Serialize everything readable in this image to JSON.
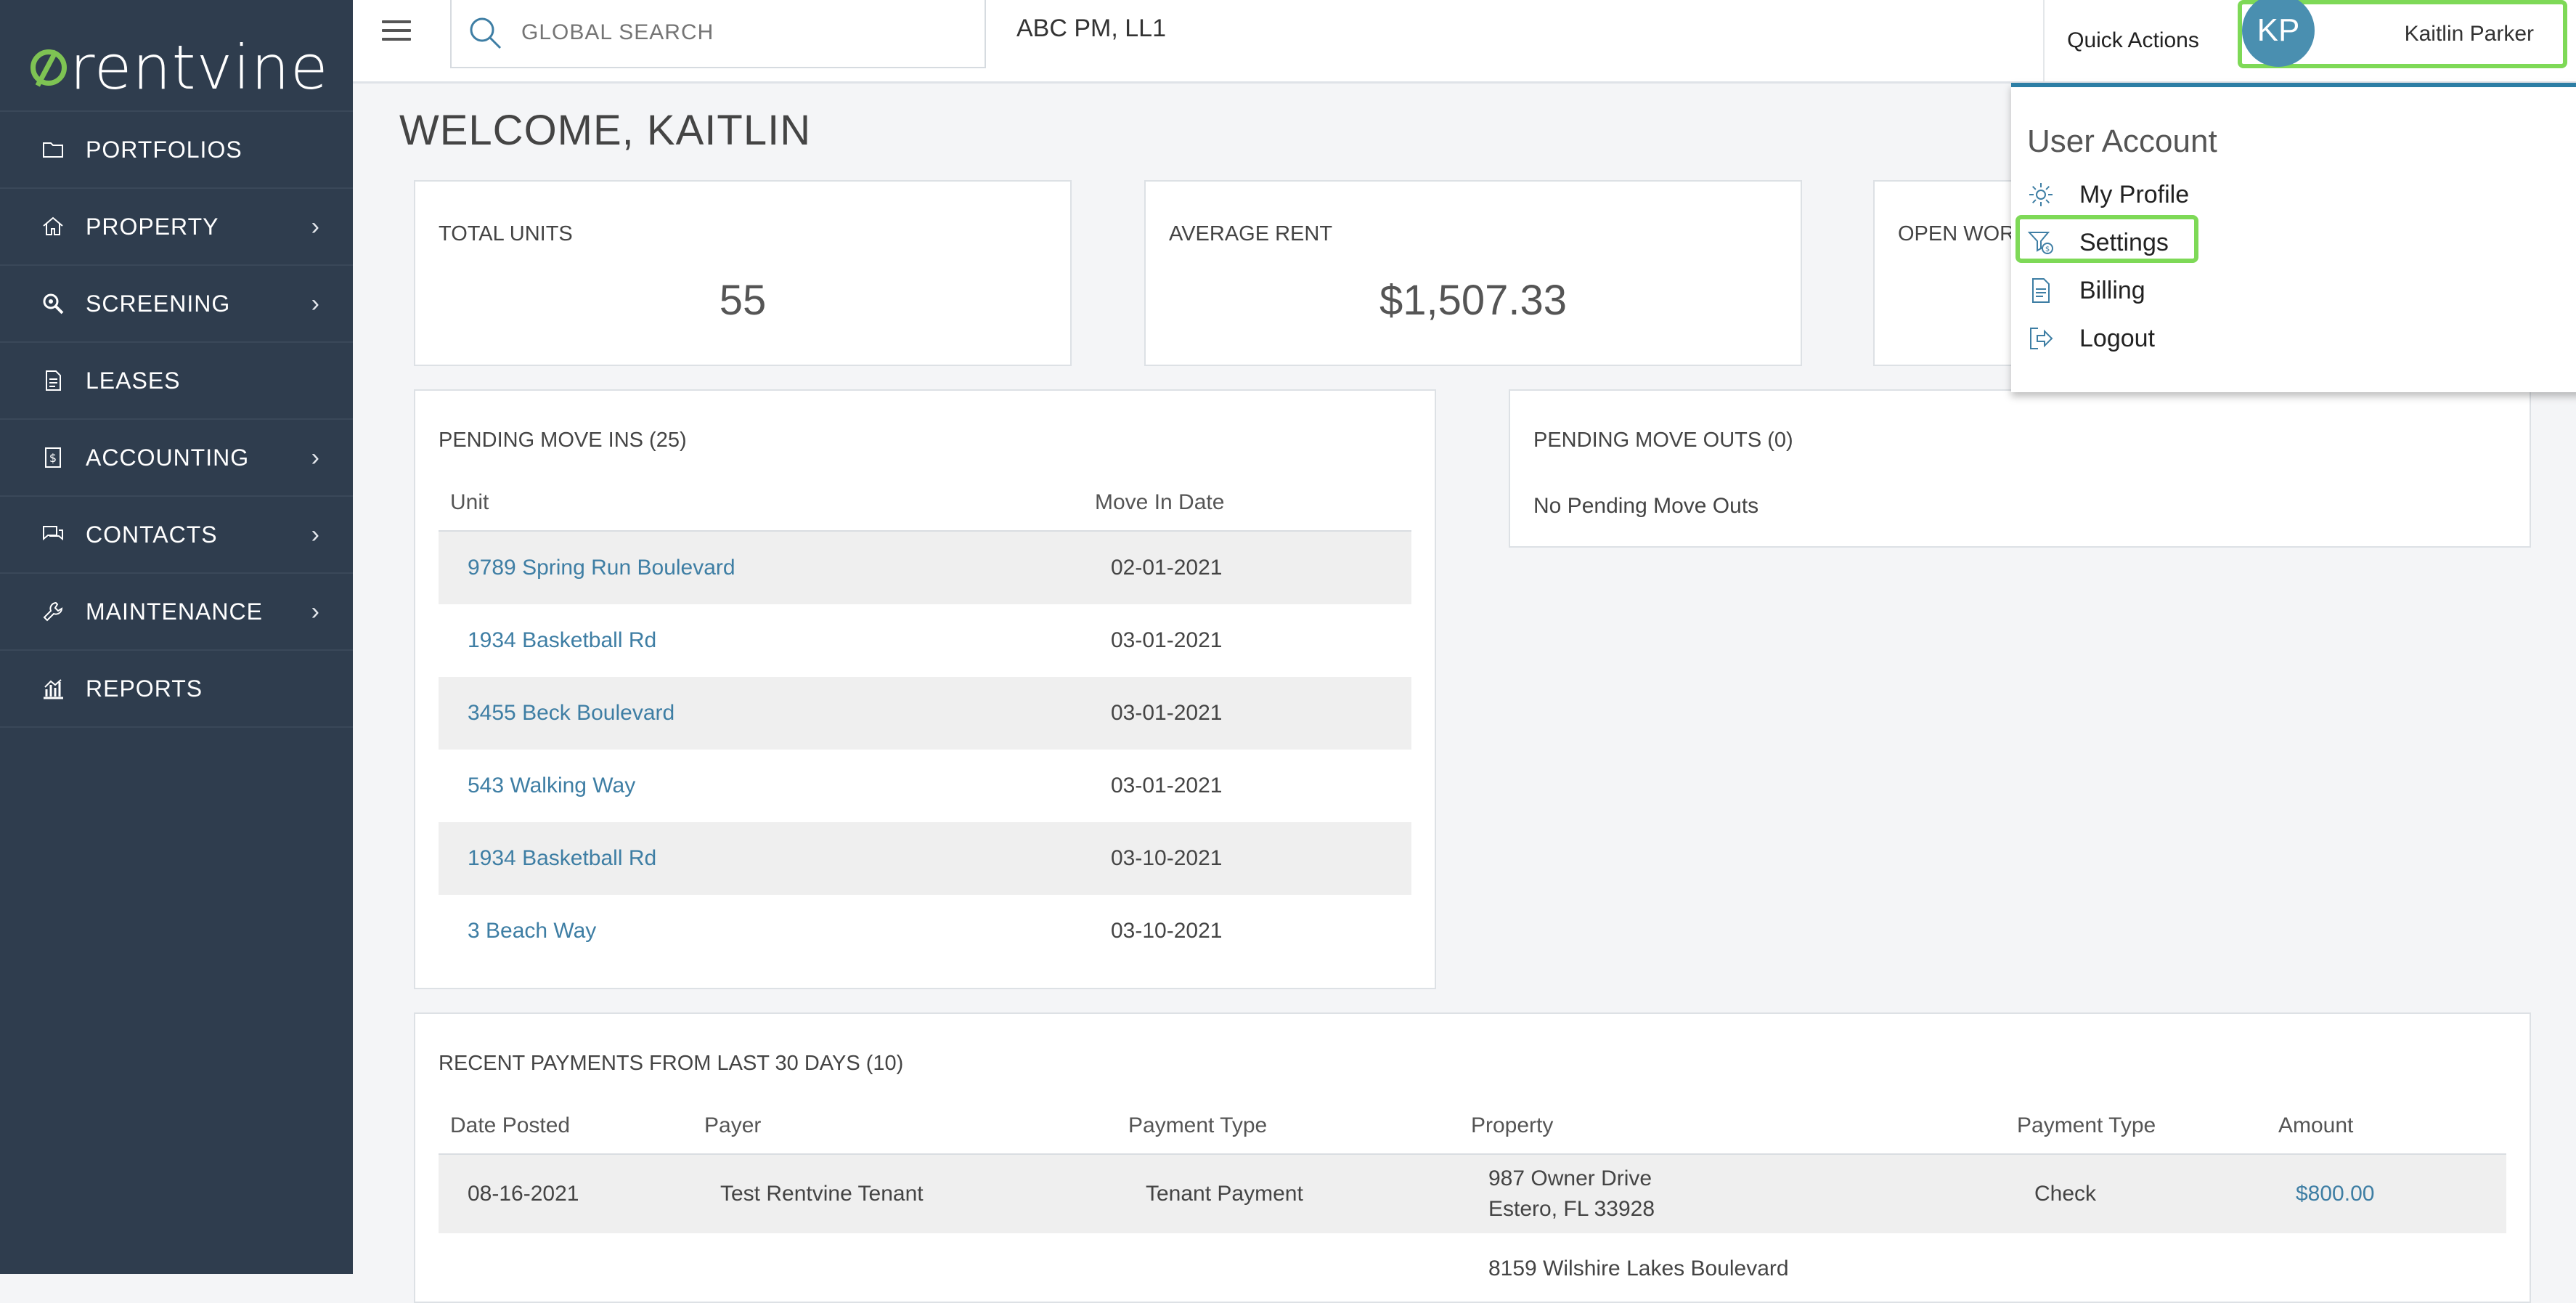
{
  "brand": {
    "name": "rentvine",
    "accent": "#7ec353",
    "sidebar_bg": "#2f3d4e"
  },
  "sidebar": {
    "items": [
      {
        "label": "PORTFOLIOS",
        "icon": "folder-icon",
        "has_submenu": false
      },
      {
        "label": "PROPERTY",
        "icon": "home-icon",
        "has_submenu": true
      },
      {
        "label": "SCREENING",
        "icon": "magnify-icon",
        "has_submenu": true
      },
      {
        "label": "LEASES",
        "icon": "document-icon",
        "has_submenu": false
      },
      {
        "label": "ACCOUNTING",
        "icon": "dollar-file-icon",
        "has_submenu": true
      },
      {
        "label": "CONTACTS",
        "icon": "chat-icon",
        "has_submenu": true
      },
      {
        "label": "MAINTENANCE",
        "icon": "wrench-icon",
        "has_submenu": true
      },
      {
        "label": "REPORTS",
        "icon": "bar-chart-icon",
        "has_submenu": false
      }
    ]
  },
  "topbar": {
    "search_placeholder": "GLOBAL SEARCH",
    "company": "ABC PM, LL1",
    "quick_actions": "Quick Actions",
    "user_initials": "KP",
    "user_name": "Kaitlin Parker"
  },
  "welcome": "WELCOME, KAITLIN",
  "stats": [
    {
      "label": "TOTAL UNITS",
      "value": "55"
    },
    {
      "label": "AVERAGE RENT",
      "value": "$1,507.33"
    },
    {
      "label": "OPEN WOR",
      "value": ""
    }
  ],
  "move_ins": {
    "title": "PENDING MOVE INS (25)",
    "columns": [
      "Unit",
      "Move In Date"
    ],
    "rows": [
      {
        "unit": "9789 Spring Run Boulevard",
        "date": "02-01-2021"
      },
      {
        "unit": "1934 Basketball Rd",
        "date": "03-01-2021"
      },
      {
        "unit": "3455 Beck Boulevard",
        "date": "03-01-2021"
      },
      {
        "unit": "543 Walking Way",
        "date": "03-01-2021"
      },
      {
        "unit": "1934 Basketball Rd",
        "date": "03-10-2021"
      },
      {
        "unit": "3 Beach Way",
        "date": "03-10-2021"
      }
    ]
  },
  "move_outs": {
    "title": "PENDING MOVE OUTS (0)",
    "empty_text": "No Pending Move Outs"
  },
  "payments": {
    "title": "RECENT PAYMENTS FROM LAST 30 DAYS (10)",
    "columns": [
      "Date Posted",
      "Payer",
      "Payment Type",
      "Property",
      "Payment Type",
      "Amount"
    ],
    "rows": [
      {
        "date": "08-16-2021",
        "payer": "Test Rentvine Tenant",
        "type": "Tenant Payment",
        "property_line1": "987 Owner Drive",
        "property_line2": "Estero, FL 33928",
        "method": "Check",
        "amount": "$800.00"
      }
    ],
    "partial_next_property": "8159 Wilshire Lakes Boulevard"
  },
  "user_menu": {
    "title": "User Account",
    "items": [
      {
        "label": "My Profile",
        "icon": "gear-icon"
      },
      {
        "label": "Settings",
        "icon": "filter-dollar-icon"
      },
      {
        "label": "Billing",
        "icon": "document-icon"
      },
      {
        "label": "Logout",
        "icon": "logout-icon"
      }
    ]
  },
  "colors": {
    "highlight": "#7ed957",
    "link": "#3e7ea4",
    "dropdown_accent": "#2c7ea5"
  }
}
